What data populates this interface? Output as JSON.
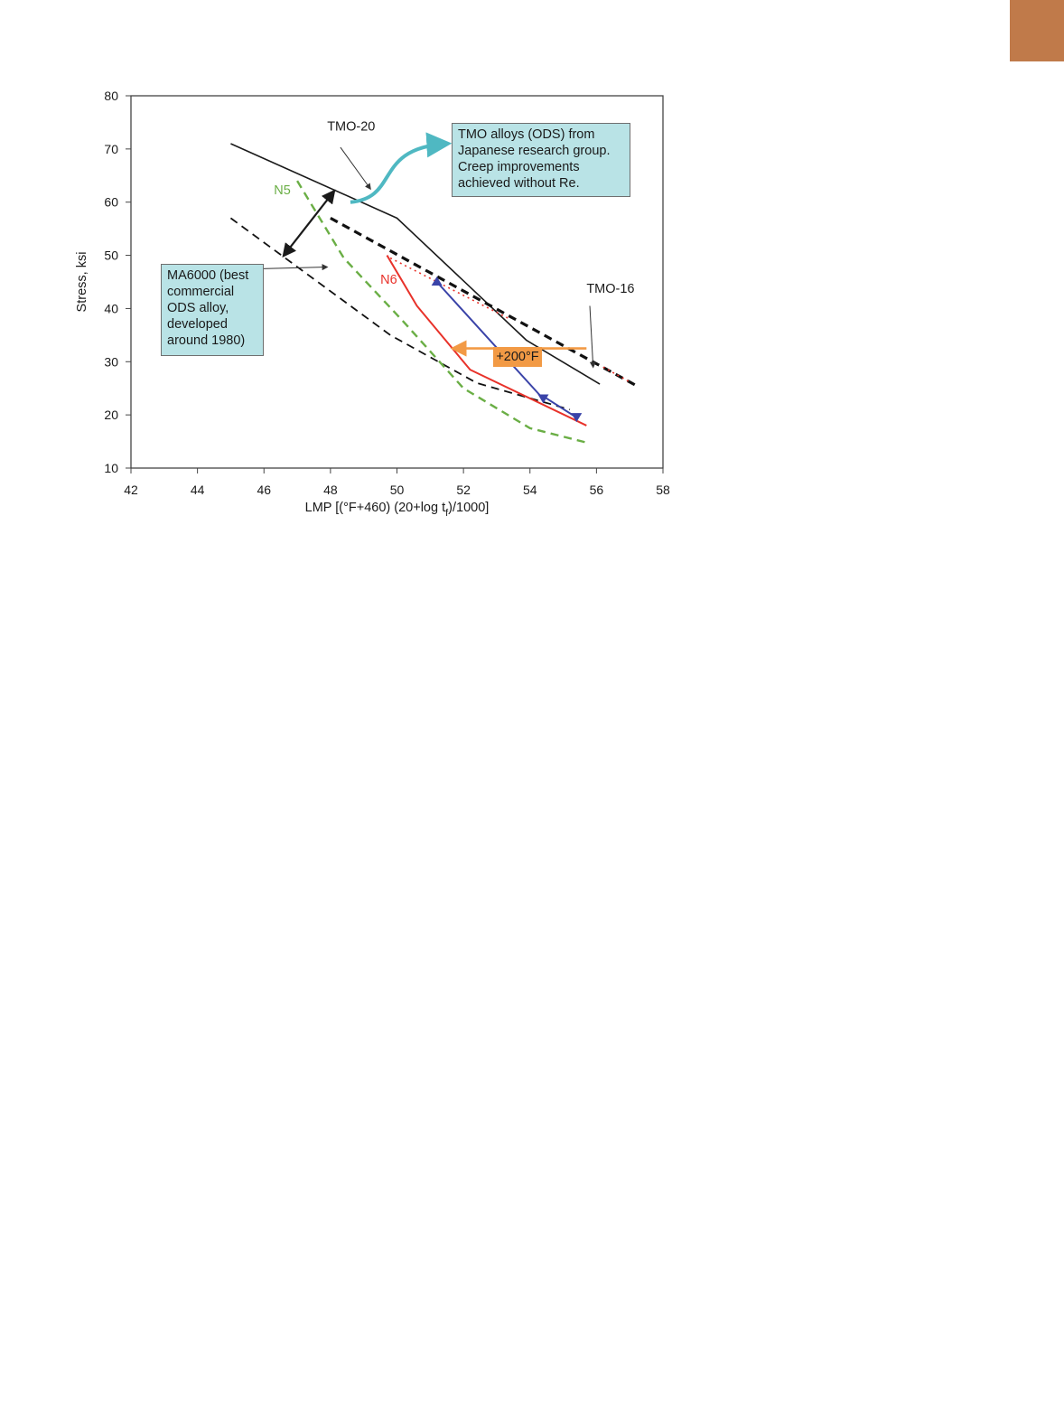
{
  "page": {
    "accent_tab_color": "#c07a4a"
  },
  "chart_data": {
    "type": "line",
    "title": "",
    "xlabel": "LMP [(°F+460) (20+log t",
    "xlabel_sub": "f",
    "xlabel_end": ")/1000]",
    "ylabel": "Stress, ksi",
    "xlim": [
      42,
      58
    ],
    "ylim": [
      10,
      80
    ],
    "xticks": [
      42,
      44,
      46,
      48,
      50,
      52,
      54,
      56,
      58
    ],
    "yticks": [
      10,
      20,
      30,
      40,
      50,
      60,
      70,
      80
    ],
    "grid": false,
    "series": [
      {
        "name": "TMO-20",
        "color": "#1a1a1a",
        "style": "solid",
        "width": 1.6,
        "points": [
          [
            45.0,
            71.0
          ],
          [
            50.0,
            57.0
          ],
          [
            53.9,
            34.0
          ],
          [
            56.1,
            25.8
          ]
        ]
      },
      {
        "name": "TMO-16",
        "color": "#111111",
        "style": "dashed",
        "width": 3.2,
        "points": [
          [
            48.0,
            57.0
          ],
          [
            57.2,
            25.5
          ]
        ]
      },
      {
        "name": "MA6000",
        "color": "#111111",
        "style": "dashed",
        "width": 1.8,
        "points": [
          [
            45.0,
            57.0
          ],
          [
            49.8,
            35.0
          ],
          [
            52.4,
            26.0
          ],
          [
            55.2,
            21.0
          ]
        ]
      },
      {
        "name": "N5",
        "color": "#6aae45",
        "style": "dashed",
        "width": 2.4,
        "points": [
          [
            47.0,
            64.0
          ],
          [
            48.4,
            49.5
          ],
          [
            50.2,
            37.5
          ],
          [
            52.0,
            25.0
          ],
          [
            54.0,
            17.5
          ],
          [
            55.7,
            14.8
          ]
        ]
      },
      {
        "name": "N6",
        "color": "#e8322a",
        "style": "solid",
        "width": 2.0,
        "points": [
          [
            49.7,
            50.0
          ],
          [
            50.6,
            40.5
          ],
          [
            52.2,
            28.5
          ],
          [
            55.7,
            18.0
          ]
        ]
      },
      {
        "name": "",
        "color": "#e8322a",
        "style": "dotted",
        "width": 1.6,
        "points": [
          [
            49.8,
            49.5
          ],
          [
            53.4,
            38.0
          ]
        ]
      },
      {
        "name": "",
        "color": "#e8322a",
        "style": "dotted",
        "width": 1.6,
        "points": [
          [
            56.2,
            29.0
          ],
          [
            57.0,
            26.2
          ]
        ]
      },
      {
        "name": "",
        "color": "#3a43a8",
        "style": "solid",
        "width": 2.0,
        "points": [
          [
            51.2,
            45.0
          ],
          [
            54.4,
            23.0
          ]
        ],
        "markers": "triangle-down-at-end",
        "marker_start": "triangle-up"
      },
      {
        "name": "",
        "color": "#3a43a8",
        "style": "solid",
        "width": 2.0,
        "points": [
          [
            54.4,
            23.5
          ],
          [
            55.4,
            19.5
          ]
        ],
        "markers": "triangle-down-at-end"
      }
    ],
    "annotations": [
      {
        "text": "TMO-20",
        "x": 49.2,
        "y": 62.5,
        "text_x": 47.9,
        "text_y": 73.5
      },
      {
        "text": "TMO-16",
        "x": 55.9,
        "y": 29.0,
        "text_x": 55.7,
        "text_y": 43.0
      },
      {
        "text": "N5",
        "x": 46.3,
        "y": 61.5,
        "color": "#6aae45"
      },
      {
        "text": "N6",
        "x": 49.5,
        "y": 44.7,
        "color": "#e8322a"
      },
      {
        "text": "MA6000 (best\ncommercial\nODS alloy,\ndeveloped\naround 1980)",
        "box_color": "#b9e3e6",
        "pointer_to": [
          47.9,
          47.8
        ]
      },
      {
        "text": "TMO alloys (ODS) from\nJapanese research group.\nCreep improvements\nachieved without Re.",
        "box_color": "#b9e3e6"
      },
      {
        "text": "+200°F",
        "box_color": "#f29a45",
        "arrow_from": [
          55.7,
          32.5
        ],
        "arrow_to": [
          51.7,
          32.5
        ]
      }
    ],
    "double_arrow": {
      "from": [
        46.6,
        50.0
      ],
      "to": [
        48.1,
        62.0
      ],
      "color": "#1a1a1a"
    },
    "curved_arrow": {
      "from": [
        48.6,
        60.0
      ],
      "to": [
        51.5,
        71.0
      ],
      "color": "#4fb8c2"
    }
  },
  "callouts": {
    "ma6000": "MA6000 (best\ncommercial\nODS alloy,\ndeveloped\naround 1980)",
    "tmo": "TMO alloys (ODS) from\nJapanese research group.\nCreep improvements\nachieved without Re.",
    "plus200": "+200°F"
  }
}
